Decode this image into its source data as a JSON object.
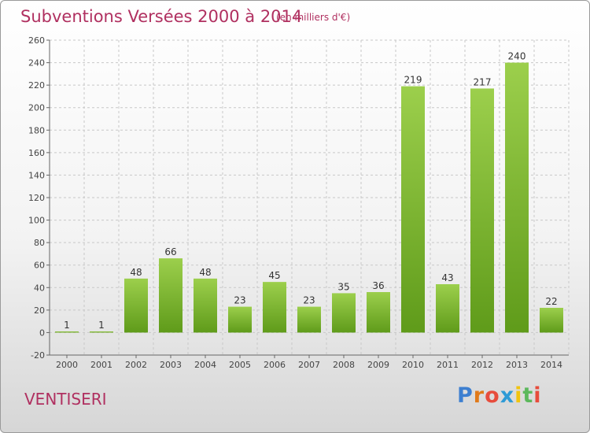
{
  "header": {
    "title": "Subventions Versées 2000 à 2014",
    "subtitle": "(en milliers d'€)"
  },
  "footer": {
    "commune": "VENTISERI",
    "logo_letters": [
      "P",
      "r",
      "o",
      "x",
      "i",
      "t",
      "i"
    ]
  },
  "colors": {
    "title": "#b03060",
    "bar_light": "#9ccf4c",
    "bar_dark": "#5f9b1a",
    "grid": "#c8c8c8"
  },
  "chart_data": {
    "type": "bar",
    "title": "Subventions Versées 2000 à 2014",
    "subtitle": "(en milliers d'€)",
    "xlabel": "",
    "ylabel": "",
    "categories": [
      "2000",
      "2001",
      "2002",
      "2003",
      "2004",
      "2005",
      "2006",
      "2007",
      "2008",
      "2009",
      "2010",
      "2011",
      "2012",
      "2013",
      "2014"
    ],
    "values": [
      1,
      1,
      48,
      66,
      48,
      23,
      45,
      23,
      35,
      36,
      219,
      43,
      217,
      240,
      22
    ],
    "ylim": [
      -20,
      260
    ],
    "yticks": [
      -20,
      0,
      20,
      40,
      60,
      80,
      100,
      120,
      140,
      160,
      180,
      200,
      220,
      240,
      260
    ],
    "grid": true,
    "data_labels": true
  }
}
